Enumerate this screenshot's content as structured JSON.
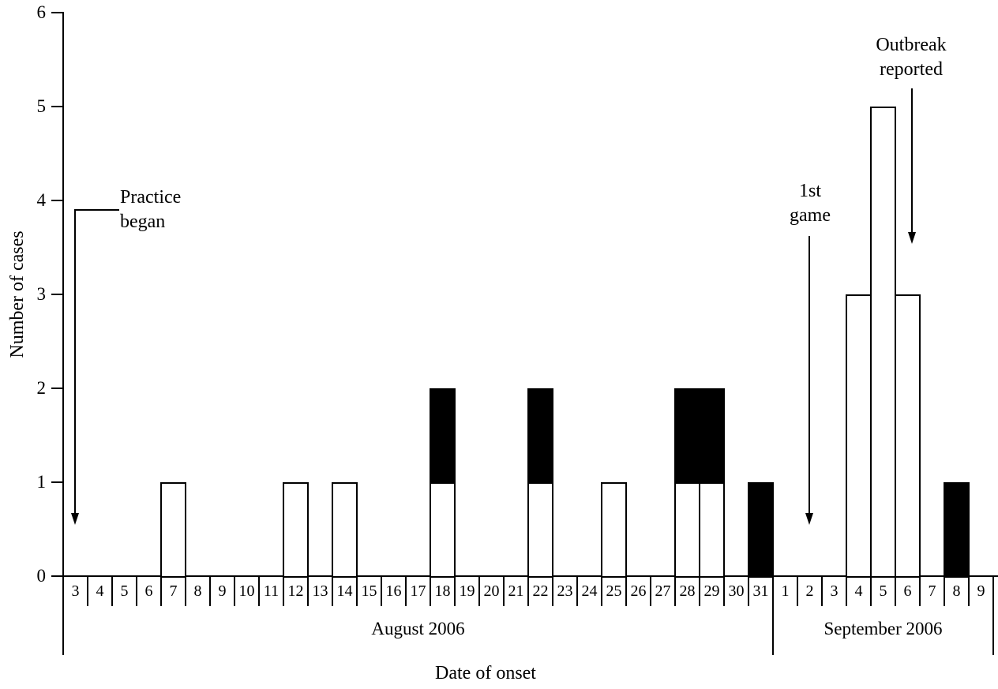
{
  "chart_data": {
    "type": "bar",
    "stacked": true,
    "title": "",
    "xlabel": "Date of onset",
    "ylabel": "Number of cases",
    "ylim": [
      0,
      6
    ],
    "yticks": [
      0,
      1,
      2,
      3,
      4,
      5,
      6
    ],
    "grid": false,
    "legend_position": "none",
    "x_groups": [
      {
        "label": "August 2006",
        "days": [
          "3",
          "4",
          "5",
          "6",
          "7",
          "8",
          "9",
          "10",
          "11",
          "12",
          "13",
          "14",
          "15",
          "16",
          "17",
          "18",
          "19",
          "20",
          "21",
          "22",
          "23",
          "24",
          "25",
          "26",
          "27",
          "28",
          "29",
          "30",
          "31"
        ]
      },
      {
        "label": "September 2006",
        "days": [
          "1",
          "2",
          "3",
          "4",
          "5",
          "6",
          "7",
          "8",
          "9"
        ]
      }
    ],
    "categories": [
      "Aug 3",
      "Aug 4",
      "Aug 5",
      "Aug 6",
      "Aug 7",
      "Aug 8",
      "Aug 9",
      "Aug 10",
      "Aug 11",
      "Aug 12",
      "Aug 13",
      "Aug 14",
      "Aug 15",
      "Aug 16",
      "Aug 17",
      "Aug 18",
      "Aug 19",
      "Aug 20",
      "Aug 21",
      "Aug 22",
      "Aug 23",
      "Aug 24",
      "Aug 25",
      "Aug 26",
      "Aug 27",
      "Aug 28",
      "Aug 29",
      "Aug 30",
      "Aug 31",
      "Sep 1",
      "Sep 2",
      "Sep 3",
      "Sep 4",
      "Sep 5",
      "Sep 6",
      "Sep 7",
      "Sep 8",
      "Sep 9"
    ],
    "series": [
      {
        "name": "open-white-bars",
        "color": "#ffffff",
        "values": [
          0,
          0,
          0,
          0,
          1,
          0,
          0,
          0,
          0,
          1,
          0,
          1,
          0,
          0,
          0,
          1,
          0,
          0,
          0,
          1,
          0,
          0,
          1,
          0,
          0,
          1,
          1,
          0,
          0,
          0,
          0,
          0,
          3,
          5,
          3,
          0,
          0,
          0
        ]
      },
      {
        "name": "filled-black-bars",
        "color": "#000000",
        "values": [
          0,
          0,
          0,
          0,
          0,
          0,
          0,
          0,
          0,
          0,
          0,
          0,
          0,
          0,
          0,
          1,
          0,
          0,
          0,
          1,
          0,
          0,
          0,
          0,
          0,
          1,
          1,
          0,
          1,
          0,
          0,
          0,
          0,
          0,
          0,
          0,
          1,
          0
        ]
      }
    ],
    "annotations": [
      {
        "id": "practice-began",
        "lines": [
          "Practice",
          "began"
        ],
        "category": "Aug 3"
      },
      {
        "id": "first-game",
        "lines": [
          "1st",
          "game"
        ],
        "category": "Sep 2"
      },
      {
        "id": "outbreak-reported",
        "lines": [
          "Outbreak",
          "reported"
        ],
        "category": "Sep 6"
      }
    ],
    "colors": {
      "axis": "#000000",
      "bar_open_fill": "#ffffff",
      "bar_filled_fill": "#000000",
      "bar_border": "#000000",
      "background": "#ffffff"
    }
  }
}
